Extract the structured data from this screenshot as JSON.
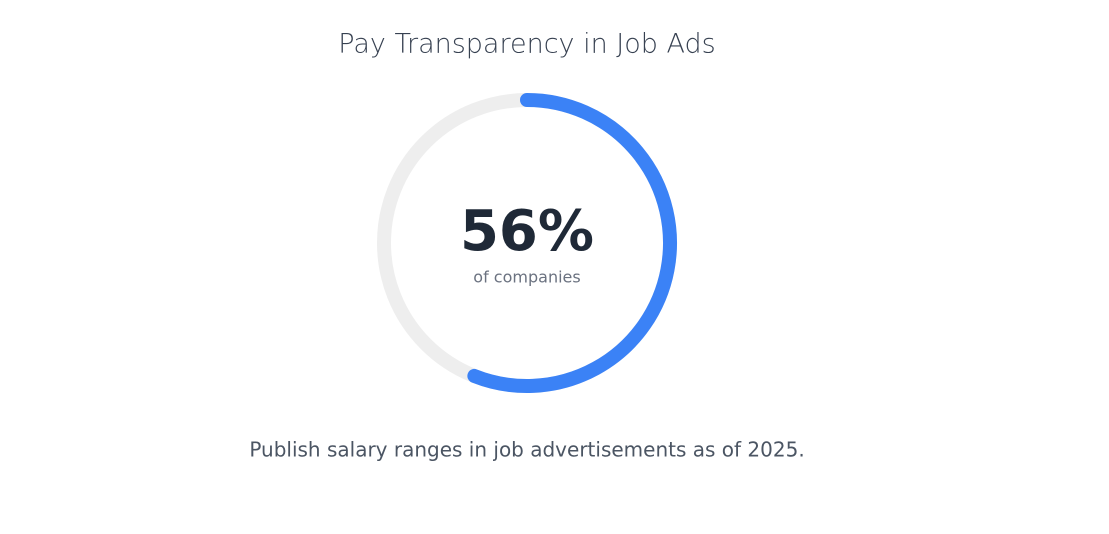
{
  "chart_data": {
    "type": "ring",
    "title": "Pay Transparency in Job Ads",
    "values": [
      56
    ],
    "value_labels": [
      "56%"
    ],
    "subtitle": "of companies",
    "caption": "Publish salary ranges in job advertisements as of 2025.",
    "ylim": [
      0,
      100
    ],
    "color": "#3b82f6",
    "track_color": "#eeeeee"
  }
}
